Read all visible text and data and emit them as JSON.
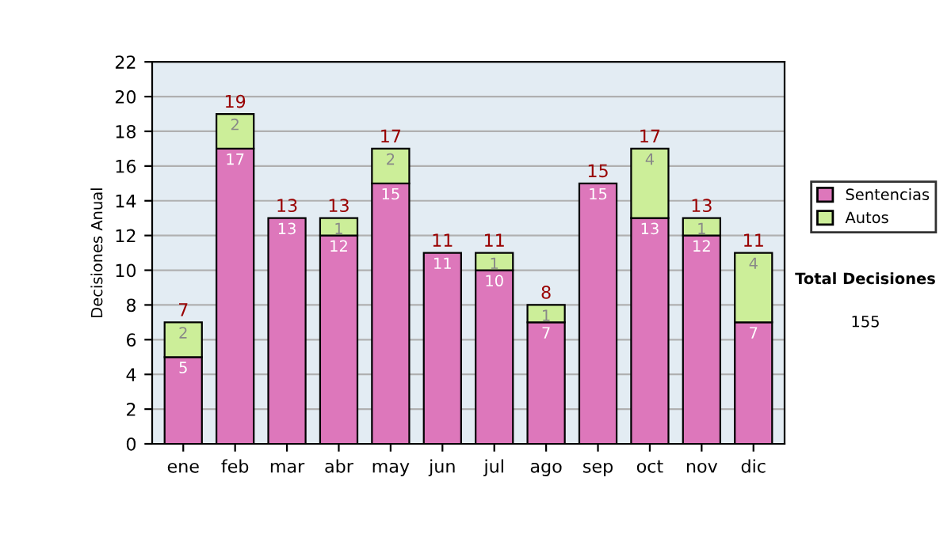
{
  "chart_data": {
    "type": "bar",
    "stacked": true,
    "ylabel": "Decisiones Anual",
    "categories": [
      "ene",
      "feb",
      "mar",
      "abr",
      "may",
      "jun",
      "jul",
      "ago",
      "sep",
      "oct",
      "nov",
      "dic"
    ],
    "series": [
      {
        "name": "Sentencias",
        "color": "#dd77bb",
        "values": [
          5,
          17,
          13,
          12,
          15,
          11,
          10,
          7,
          15,
          13,
          12,
          7
        ],
        "value_labels": [
          "5",
          "17",
          "13",
          "12",
          "15",
          "11",
          "10",
          "7",
          "15",
          "13",
          "12",
          "7"
        ]
      },
      {
        "name": "Autos",
        "color": "#ccee99",
        "values": [
          2,
          2,
          0,
          1,
          2,
          0,
          1,
          1,
          0,
          4,
          1,
          4
        ],
        "value_labels": [
          "2",
          "2",
          null,
          "1",
          "2",
          null,
          "1",
          "1",
          null,
          "4",
          "1",
          "4"
        ]
      }
    ],
    "totals": [
      "7",
      "19",
      "13",
      "13",
      "17",
      "11",
      "11",
      "8",
      "15",
      "17",
      "13",
      "11"
    ],
    "ylim": [
      0,
      22
    ],
    "yticks": [
      0,
      2,
      4,
      6,
      8,
      10,
      12,
      14,
      16,
      18,
      20,
      22
    ],
    "grid": "y",
    "legend": "right",
    "annotations": [
      "Total Decisiones",
      "155"
    ]
  }
}
